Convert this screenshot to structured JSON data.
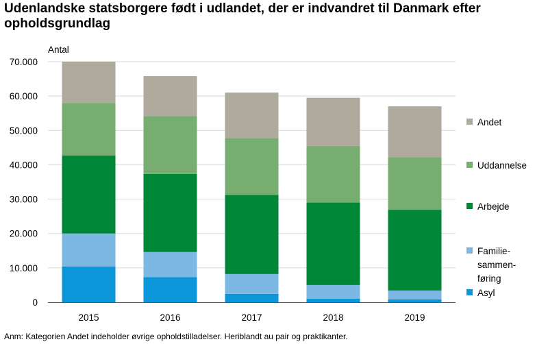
{
  "title": "Udenlandske statsborgere født i udlandet, der er indvandret til Danmark efter opholdsgrundlag",
  "note": "Anm: Kategorien Andet indeholder øvrige opholdstilladelser. Heriblandt au pair og praktikanter.",
  "chart_data": {
    "type": "bar",
    "stacked": true,
    "ylabel": "Antal",
    "ylim": [
      0,
      70000
    ],
    "yticks": [
      "0",
      "10.000",
      "20.000",
      "30.000",
      "40.000",
      "50.000",
      "60.000",
      "70.000"
    ],
    "yticks_values": [
      0,
      10000,
      20000,
      30000,
      40000,
      50000,
      60000,
      70000
    ],
    "grid": true,
    "legend_position": "right",
    "categories": [
      "2015",
      "2016",
      "2017",
      "2018",
      "2019"
    ],
    "series": [
      {
        "name": "Asyl",
        "color": "#0a96d8",
        "values": [
          10400,
          7300,
          2400,
          1000,
          800
        ]
      },
      {
        "name": "Familie-sammen-føring",
        "legend_lines": [
          "Familie-",
          "sammen-",
          "føring"
        ],
        "color": "#7cb8e4",
        "values": [
          9600,
          7300,
          5800,
          4000,
          2600
        ]
      },
      {
        "name": "Arbejde",
        "color": "#008637",
        "values": [
          22700,
          22700,
          23000,
          24000,
          23500
        ]
      },
      {
        "name": "Uddannelse",
        "color": "#78ad72",
        "values": [
          15300,
          16900,
          16600,
          16500,
          15300
        ]
      },
      {
        "name": "Andet",
        "color": "#aeaa9e",
        "values": [
          12000,
          11600,
          13200,
          14000,
          14800
        ]
      }
    ]
  }
}
